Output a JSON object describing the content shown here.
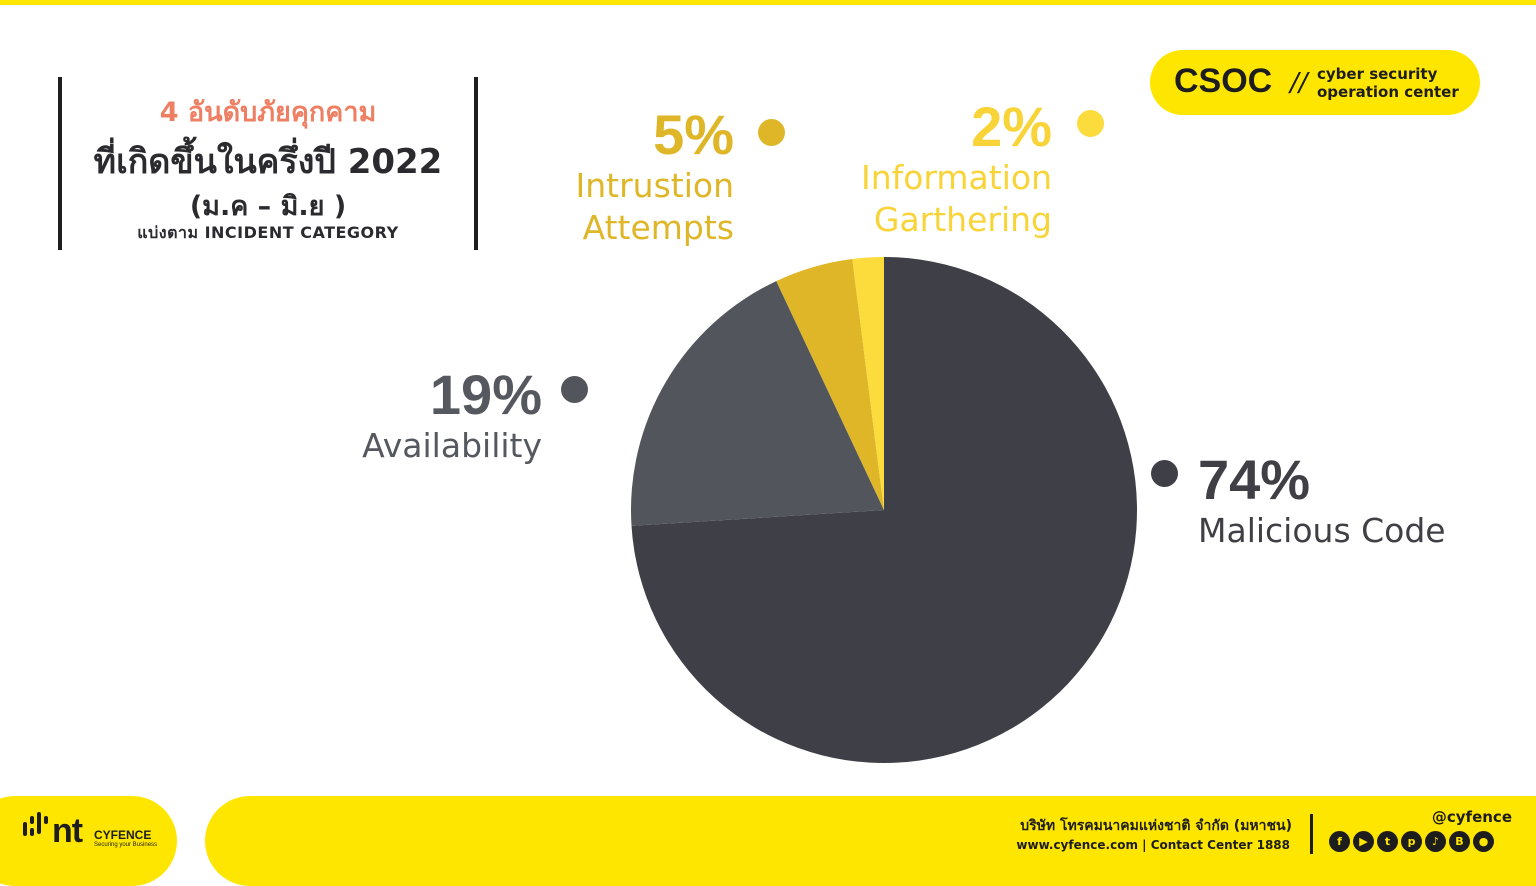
{
  "header": {
    "title_line1": "4 อันดับภัยคุกคาม",
    "title_line2": "ที่เกิดขึ้นในครึ่งปี 2022",
    "title_line3": "(ม.ค – มิ.ย )",
    "title_line4": "แบ่งตาม INCIDENT CATEGORY"
  },
  "badge": {
    "main": "CSOC",
    "slash": "//",
    "line1": "cyber security",
    "line2": "operation center"
  },
  "chart_data": {
    "type": "pie",
    "title": "",
    "start_angle_deg": 0,
    "direction": "clockwise",
    "slices": [
      {
        "label": "Malicious Code",
        "pct_label": "74%",
        "value": 74,
        "color": "#3f3f47"
      },
      {
        "label": "Availability",
        "pct_label": "19%",
        "value": 19,
        "color": "#52565c"
      },
      {
        "label": "Intrustion Attempts",
        "pct_label": "5%",
        "value": 5,
        "color": "#dfb628"
      },
      {
        "label": "Information Garthering",
        "pct_label": "2%",
        "value": 2,
        "color": "#fbdc3c"
      }
    ]
  },
  "labels": {
    "malicious": {
      "pct": "74%",
      "name": "Malicious Code"
    },
    "availability": {
      "pct": "19%",
      "name": "Availability"
    },
    "intrusion": {
      "pct": "5%",
      "name1": "Intrustion",
      "name2": "Attempts"
    },
    "information": {
      "pct": "2%",
      "name1": "Information",
      "name2": "Garthering"
    }
  },
  "footer": {
    "logo_nt": "nt",
    "logo_brand": "CYFENCE",
    "logo_tag": "Securing your Business",
    "company": "บริษัท โทรคมนาคมแห่งชาติ จำกัด (มหาชน)",
    "website": "www.cyfence.com | Contact Center 1888",
    "handle": "@cyfence",
    "social_icons": [
      "facebook-icon",
      "youtube-icon",
      "twitter-icon",
      "pinterest-icon",
      "tiktok-icon",
      "blockdit-icon",
      "medium-icon"
    ],
    "accent": "#ffe600"
  }
}
